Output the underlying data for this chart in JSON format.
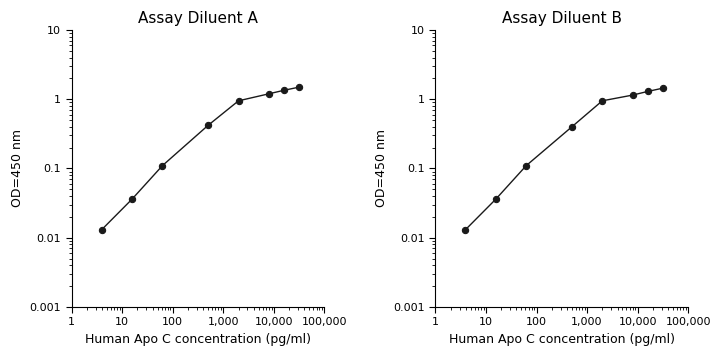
{
  "plot_A": {
    "title": "Assay Diluent A",
    "x": [
      3.9,
      15.6,
      62.5,
      500,
      2000,
      8000,
      16000,
      32000
    ],
    "y": [
      0.013,
      0.036,
      0.11,
      0.42,
      0.95,
      1.2,
      1.35,
      1.5
    ],
    "xlabel": "Human Apo C concentration (pg/ml)",
    "ylabel": "OD=450 nm",
    "xlim": [
      1.5,
      100000
    ],
    "ylim": [
      0.001,
      10
    ]
  },
  "plot_B": {
    "title": "Assay Diluent B",
    "x": [
      3.9,
      15.6,
      62.5,
      500,
      2000,
      8000,
      16000,
      32000
    ],
    "y": [
      0.013,
      0.036,
      0.11,
      0.4,
      0.95,
      1.15,
      1.3,
      1.45
    ],
    "xlabel": "Human Apo C concentration (pg/ml)",
    "ylabel": "OD=450 nm",
    "xlim": [
      1.5,
      100000
    ],
    "ylim": [
      0.001,
      10
    ]
  },
  "line_color": "#1a1a1a",
  "marker": "o",
  "marker_size": 4.5,
  "marker_facecolor": "#1a1a1a",
  "linewidth": 1.0,
  "title_fontsize": 11,
  "label_fontsize": 9,
  "tick_fontsize": 8,
  "background_color": "#ffffff",
  "x_ticks": [
    1,
    10,
    100,
    1000,
    10000,
    100000
  ],
  "x_tick_labels": [
    "1",
    "10",
    "100",
    "1,000",
    "10,000",
    "100,000"
  ],
  "y_ticks": [
    0.001,
    0.01,
    0.1,
    1,
    10
  ],
  "y_tick_labels": [
    "0.001",
    "0.01",
    "0.1",
    "1",
    "10"
  ]
}
